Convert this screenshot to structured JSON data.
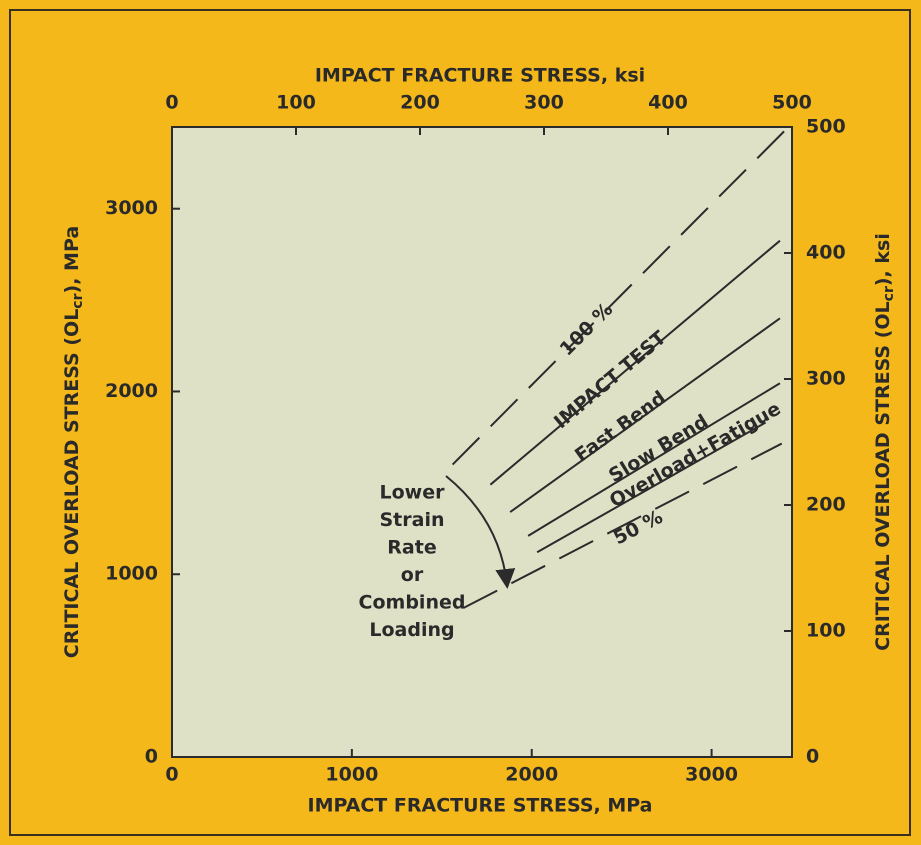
{
  "chart_data": {
    "type": "line",
    "x_label": "IMPACT FRACTURE STRESS, MPa",
    "x2_label": "IMPACT FRACTURE STRESS, ksi",
    "y_label": {
      "before": "CRITICAL OVERLOAD STRESS (OL",
      "sub": "cr",
      "after": "), MPa"
    },
    "y2_label": {
      "before": "CRITICAL OVERLOAD STRESS (OL",
      "sub": "cr",
      "after": "), ksi"
    },
    "xlim": [
      0,
      3447
    ],
    "xticks": [
      0,
      1000,
      2000,
      3000
    ],
    "x2lim": [
      0,
      500
    ],
    "x2ticks": [
      0,
      100,
      200,
      300,
      400,
      500
    ],
    "ylim": [
      0,
      3447
    ],
    "yticks": [
      0,
      1000,
      2000,
      3000
    ],
    "y2lim": [
      0,
      500
    ],
    "y2ticks": [
      0,
      100,
      200,
      300,
      400,
      500
    ],
    "series": [
      {
        "name": "100 %",
        "color": "#2b2b2b",
        "dashed": true,
        "x": [
          1560,
          3410
        ],
        "values": [
          1600,
          3430
        ]
      },
      {
        "name": "IMPACT TEST",
        "color": "#2b2b2b",
        "dashed": false,
        "x": [
          1770,
          3380
        ],
        "values": [
          1490,
          2825
        ]
      },
      {
        "name": "Fast Bend",
        "color": "#2b2b2b",
        "dashed": false,
        "x": [
          1880,
          3380
        ],
        "values": [
          1340,
          2400
        ]
      },
      {
        "name": "Slow Bend",
        "color": "#2b2b2b",
        "dashed": false,
        "x": [
          1980,
          3380
        ],
        "values": [
          1210,
          2045
        ]
      },
      {
        "name": "Overload+Fatigue",
        "color": "#2b2b2b",
        "dashed": false,
        "x": [
          2030,
          3300
        ],
        "values": [
          1120,
          1830
        ]
      },
      {
        "name": "50 %",
        "color": "#2b2b2b",
        "dashed": true,
        "x": [
          1620,
          3390
        ],
        "values": [
          815,
          1715
        ]
      }
    ],
    "annotation": [
      "Lower",
      "Strain",
      "Rate",
      "or",
      "Combined",
      "Loading"
    ]
  }
}
